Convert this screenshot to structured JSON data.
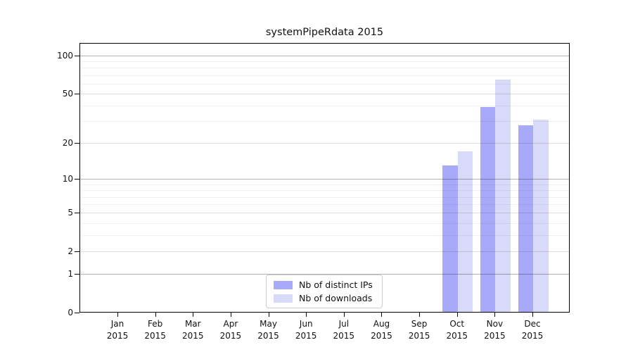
{
  "chart_data": {
    "type": "bar",
    "title": "systemPipeRdata 2015",
    "categories": [
      "Jan 2015",
      "Feb 2015",
      "Mar 2015",
      "Apr 2015",
      "May 2015",
      "Jun 2015",
      "Jul 2015",
      "Aug 2015",
      "Sep 2015",
      "Oct 2015",
      "Nov 2015",
      "Dec 2015"
    ],
    "series": [
      {
        "name": "Nb of distinct IPs",
        "color": "#a9a9fa",
        "values": [
          0,
          0,
          0,
          0,
          0,
          0,
          0,
          0,
          0,
          13,
          39,
          28
        ]
      },
      {
        "name": "Nb of downloads",
        "color": "#d9d9fa",
        "values": [
          0,
          0,
          0,
          0,
          0,
          0,
          0,
          0,
          0,
          17,
          65,
          31
        ]
      }
    ],
    "yscale": "log1p",
    "yticks": [
      0,
      1,
      2,
      5,
      10,
      20,
      50,
      100
    ],
    "minor_yticks": [
      3,
      4,
      6,
      7,
      8,
      9,
      30,
      40,
      60,
      70,
      80,
      90
    ],
    "ylim": [
      0,
      124
    ],
    "xlabel": "",
    "ylabel": "",
    "grid": true,
    "legend_position": "lower center",
    "background": "#ffffff"
  }
}
